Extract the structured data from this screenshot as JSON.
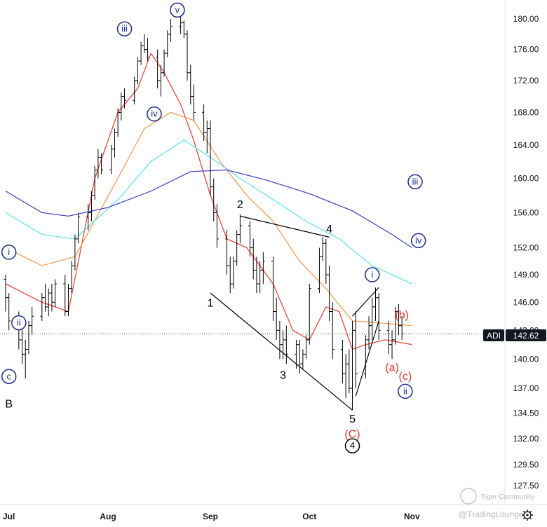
{
  "symbol": {
    "ticker": "ADI",
    "last_price": "142.62"
  },
  "watermark": {
    "tradingview": "@TradingLounge",
    "community": "Tiger Community"
  },
  "colors": {
    "candles": "#000000",
    "ma_red": "#e8483f",
    "ma_orange": "#f49b52",
    "ma_cyan": "#69e3ef",
    "ma_blue": "#4b4bc0",
    "wave_black": "#000000",
    "wave_navy": "#1a2a8c",
    "wave_red": "#e03a2f",
    "axis_text": "#131722"
  },
  "chart_data": {
    "type": "candlestick",
    "title": "",
    "xlabel": "",
    "ylabel": "",
    "ylim": [
      126.5,
      181.8
    ],
    "y_scale": "log",
    "y_ticks": [
      "180.00",
      "176.00",
      "172.00",
      "168.00",
      "164.00",
      "160.00",
      "156.00",
      "152.00",
      "149.00",
      "146.00",
      "143.00",
      "140.00",
      "137.00",
      "134.50",
      "132.00",
      "129.50",
      "127.50"
    ],
    "x_ticks": [
      "Jul",
      "Aug",
      "Sep",
      "Oct",
      "Nov"
    ],
    "x_range": [
      "2021-07-01",
      "2021-11-02"
    ],
    "price_line": 142.62,
    "moving_averages": [
      {
        "color_key": "ma_red",
        "points": [
          [
            "2021-07-01",
            148.0
          ],
          [
            "2021-07-12",
            146.0
          ],
          [
            "2021-07-20",
            145.0
          ],
          [
            "2021-07-28",
            160.0
          ],
          [
            "2021-08-04",
            168.0
          ],
          [
            "2021-08-10",
            171.0
          ],
          [
            "2021-08-14",
            175.5
          ],
          [
            "2021-08-18",
            173.0
          ],
          [
            "2021-08-23",
            169.0
          ],
          [
            "2021-08-27",
            164.5
          ],
          [
            "2021-09-01",
            158.0
          ],
          [
            "2021-09-06",
            153.0
          ],
          [
            "2021-09-12",
            152.0
          ],
          [
            "2021-09-20",
            148.0
          ],
          [
            "2021-09-26",
            143.0
          ],
          [
            "2021-10-01",
            142.0
          ],
          [
            "2021-10-06",
            145.5
          ],
          [
            "2021-10-10",
            145.0
          ],
          [
            "2021-10-14",
            141.0
          ],
          [
            "2021-10-18",
            141.5
          ],
          [
            "2021-10-24",
            142.0
          ],
          [
            "2021-11-01",
            141.5
          ]
        ]
      },
      {
        "color_key": "ma_orange",
        "points": [
          [
            "2021-07-01",
            152.0
          ],
          [
            "2021-07-12",
            150.0
          ],
          [
            "2021-07-22",
            151.0
          ],
          [
            "2021-08-04",
            160.0
          ],
          [
            "2021-08-12",
            166.0
          ],
          [
            "2021-08-20",
            168.0
          ],
          [
            "2021-08-27",
            167.0
          ],
          [
            "2021-09-04",
            162.0
          ],
          [
            "2021-09-12",
            158.0
          ],
          [
            "2021-09-20",
            155.0
          ],
          [
            "2021-09-28",
            150.5
          ],
          [
            "2021-10-06",
            147.5
          ],
          [
            "2021-10-14",
            144.0
          ],
          [
            "2021-10-22",
            143.8
          ],
          [
            "2021-11-01",
            143.5
          ]
        ]
      },
      {
        "color_key": "ma_cyan",
        "points": [
          [
            "2021-07-01",
            156.0
          ],
          [
            "2021-07-12",
            153.5
          ],
          [
            "2021-07-22",
            153.0
          ],
          [
            "2021-08-04",
            157.5
          ],
          [
            "2021-08-14",
            162.0
          ],
          [
            "2021-08-24",
            164.6
          ],
          [
            "2021-09-01",
            162.5
          ],
          [
            "2021-09-10",
            160.0
          ],
          [
            "2021-09-20",
            157.5
          ],
          [
            "2021-09-30",
            155.0
          ],
          [
            "2021-10-10",
            153.0
          ],
          [
            "2021-10-20",
            150.0
          ],
          [
            "2021-11-01",
            148.0
          ]
        ]
      },
      {
        "color_key": "ma_blue",
        "points": [
          [
            "2021-07-01",
            158.5
          ],
          [
            "2021-07-12",
            156.0
          ],
          [
            "2021-07-20",
            155.6
          ],
          [
            "2021-08-01",
            156.6
          ],
          [
            "2021-08-14",
            158.5
          ],
          [
            "2021-08-26",
            160.8
          ],
          [
            "2021-09-06",
            161.0
          ],
          [
            "2021-09-18",
            159.8
          ],
          [
            "2021-10-01",
            158.2
          ],
          [
            "2021-10-14",
            156.2
          ],
          [
            "2021-10-26",
            153.5
          ],
          [
            "2021-11-01",
            152.0
          ]
        ]
      }
    ],
    "wave_labels": [
      {
        "text": "i",
        "x": "2021-07-02",
        "y": 151.5,
        "style": "circled",
        "color_key": "wave_navy"
      },
      {
        "text": "ii",
        "x": "2021-07-05",
        "y": 143.8,
        "style": "circled",
        "color_key": "wave_navy"
      },
      {
        "text": "c",
        "x": "2021-07-02",
        "y": 138.2,
        "style": "circled",
        "color_key": "wave_navy"
      },
      {
        "text": "B",
        "x": "2021-07-02",
        "y": 135.5,
        "style": "plain",
        "color_key": "wave_black"
      },
      {
        "text": "iii",
        "x": "2021-08-06",
        "y": 178.7,
        "style": "circled",
        "color_key": "wave_navy"
      },
      {
        "text": "iv",
        "x": "2021-08-15",
        "y": 167.8,
        "style": "circled",
        "color_key": "wave_navy"
      },
      {
        "text": "v",
        "x": "2021-08-22",
        "y": 181.2,
        "style": "circled",
        "color_key": "wave_navy"
      },
      {
        "text": "1",
        "x": "2021-09-01",
        "y": 146.0,
        "style": "plain",
        "color_key": "wave_black"
      },
      {
        "text": "2",
        "x": "2021-09-10",
        "y": 157.0,
        "style": "plain",
        "color_key": "wave_black"
      },
      {
        "text": "3",
        "x": "2021-09-23",
        "y": 138.4,
        "style": "plain",
        "color_key": "wave_black"
      },
      {
        "text": "4",
        "x": "2021-10-07",
        "y": 154.2,
        "style": "plain",
        "color_key": "wave_black"
      },
      {
        "text": "5",
        "x": "2021-10-14",
        "y": 134.0,
        "style": "plain",
        "color_key": "wave_black"
      },
      {
        "text": "(C)",
        "x": "2021-10-14",
        "y": 132.5,
        "style": "plain",
        "color_key": "wave_red"
      },
      {
        "text": "4",
        "x": "2021-10-14",
        "y": 131.3,
        "style": "circled",
        "color_key": "wave_black"
      },
      {
        "text": "i",
        "x": "2021-10-20",
        "y": 149.0,
        "style": "circled",
        "color_key": "wave_navy"
      },
      {
        "text": "(b)",
        "x": "2021-10-29",
        "y": 144.7,
        "style": "plain",
        "color_key": "wave_red"
      },
      {
        "text": "(a)",
        "x": "2021-10-26",
        "y": 139.2,
        "style": "plain",
        "color_key": "wave_red"
      },
      {
        "text": "(c)",
        "x": "2021-10-30",
        "y": 138.3,
        "style": "plain",
        "color_key": "wave_red"
      },
      {
        "text": "ii",
        "x": "2021-10-30",
        "y": 136.7,
        "style": "circled",
        "color_key": "wave_navy"
      },
      {
        "text": "iii",
        "x": "2021-11-02",
        "y": 159.6,
        "style": "circled",
        "color_key": "wave_navy"
      },
      {
        "text": "iv",
        "x": "2021-11-03",
        "y": 152.8,
        "style": "circled",
        "color_key": "wave_navy"
      }
    ],
    "trendlines": [
      {
        "from": [
          "2021-09-01",
          147.0
        ],
        "to": [
          "2021-10-14",
          134.8
        ]
      },
      {
        "from": [
          "2021-09-10",
          155.6
        ],
        "to": [
          "2021-10-07",
          153.2
        ]
      },
      {
        "from": [
          "2021-10-14",
          144.5
        ],
        "to": [
          "2021-10-22",
          147.6
        ]
      },
      {
        "from": [
          "2021-10-15",
          136.2
        ],
        "to": [
          "2021-10-22",
          144.0
        ]
      }
    ],
    "candles": [
      [
        "2021-07-01",
        148.5,
        149.0,
        145.0,
        146.5
      ],
      [
        "2021-07-02",
        146.5,
        147.0,
        143.0,
        144.0
      ],
      [
        "2021-07-05",
        144.0,
        145.0,
        141.0,
        142.0
      ],
      [
        "2021-07-06",
        142.0,
        143.5,
        139.5,
        140.5
      ],
      [
        "2021-07-07",
        140.5,
        142.0,
        138.0,
        141.0
      ],
      [
        "2021-07-08",
        141.0,
        144.0,
        140.5,
        143.5
      ],
      [
        "2021-07-09",
        143.5,
        145.5,
        142.5,
        144.5
      ],
      [
        "2021-07-12",
        144.5,
        147.0,
        144.0,
        146.5
      ],
      [
        "2021-07-13",
        146.5,
        148.0,
        145.0,
        145.5
      ],
      [
        "2021-07-14",
        145.5,
        147.5,
        144.5,
        147.0
      ],
      [
        "2021-07-15",
        147.0,
        148.0,
        145.0,
        146.0
      ],
      [
        "2021-07-16",
        146.0,
        148.5,
        145.5,
        148.0
      ],
      [
        "2021-07-19",
        148.0,
        149.0,
        144.5,
        145.0
      ],
      [
        "2021-07-20",
        145.0,
        148.0,
        144.5,
        147.5
      ],
      [
        "2021-07-21",
        147.5,
        150.5,
        147.0,
        150.0
      ],
      [
        "2021-07-22",
        150.0,
        153.5,
        149.5,
        153.0
      ],
      [
        "2021-07-23",
        153.0,
        156.0,
        152.5,
        155.5
      ],
      [
        "2021-07-26",
        155.5,
        157.0,
        154.0,
        156.0
      ],
      [
        "2021-07-27",
        156.0,
        158.5,
        155.0,
        158.0
      ],
      [
        "2021-07-28",
        158.0,
        161.5,
        157.5,
        161.0
      ],
      [
        "2021-07-29",
        161.0,
        163.5,
        160.0,
        162.5
      ],
      [
        "2021-07-30",
        162.5,
        163.0,
        160.5,
        161.0
      ],
      [
        "2021-08-02",
        161.0,
        164.0,
        160.5,
        163.5
      ],
      [
        "2021-08-03",
        163.5,
        166.0,
        162.5,
        165.5
      ],
      [
        "2021-08-04",
        165.5,
        168.5,
        165.0,
        168.0
      ],
      [
        "2021-08-05",
        168.0,
        170.5,
        167.0,
        170.0
      ],
      [
        "2021-08-06",
        170.0,
        171.0,
        168.5,
        169.5
      ],
      [
        "2021-08-09",
        169.5,
        172.5,
        169.0,
        172.0
      ],
      [
        "2021-08-10",
        172.0,
        175.0,
        171.5,
        174.5
      ],
      [
        "2021-08-11",
        174.5,
        177.0,
        174.0,
        176.5
      ],
      [
        "2021-08-12",
        176.5,
        178.0,
        175.5,
        176.0
      ],
      [
        "2021-08-13",
        176.0,
        177.5,
        174.5,
        175.0
      ],
      [
        "2021-08-16",
        175.0,
        176.0,
        171.0,
        172.0
      ],
      [
        "2021-08-17",
        172.0,
        174.0,
        170.0,
        173.0
      ],
      [
        "2021-08-18",
        173.0,
        176.0,
        172.5,
        175.5
      ],
      [
        "2021-08-19",
        175.5,
        178.5,
        175.0,
        178.0
      ],
      [
        "2021-08-20",
        178.0,
        180.0,
        177.0,
        179.0
      ],
      [
        "2021-08-23",
        179.0,
        180.5,
        178.0,
        179.5
      ],
      [
        "2021-08-24",
        179.5,
        179.8,
        177.5,
        178.0
      ],
      [
        "2021-08-25",
        178.0,
        178.5,
        172.0,
        173.0
      ],
      [
        "2021-08-26",
        173.0,
        174.0,
        169.0,
        170.0
      ],
      [
        "2021-08-27",
        170.0,
        171.5,
        167.0,
        168.0
      ],
      [
        "2021-08-30",
        168.0,
        169.0,
        164.5,
        165.5
      ],
      [
        "2021-08-31",
        165.5,
        167.0,
        163.0,
        166.0
      ],
      [
        "2021-09-01",
        166.0,
        167.0,
        158.0,
        159.0
      ],
      [
        "2021-09-02",
        159.0,
        160.0,
        155.0,
        156.0
      ],
      [
        "2021-09-03",
        156.0,
        157.0,
        152.0,
        153.0
      ],
      [
        "2021-09-06",
        153.0,
        154.0,
        149.0,
        150.0
      ],
      [
        "2021-09-07",
        150.0,
        151.0,
        147.0,
        148.0
      ],
      [
        "2021-09-08",
        148.0,
        151.0,
        147.5,
        150.5
      ],
      [
        "2021-09-09",
        150.5,
        154.0,
        150.0,
        153.5
      ],
      [
        "2021-09-10",
        153.5,
        155.8,
        152.5,
        154.5
      ],
      [
        "2021-09-13",
        154.5,
        155.0,
        151.0,
        152.0
      ],
      [
        "2021-09-14",
        152.0,
        153.0,
        148.5,
        149.5
      ],
      [
        "2021-09-15",
        149.5,
        151.0,
        147.0,
        148.0
      ],
      [
        "2021-09-16",
        148.0,
        150.5,
        147.0,
        149.5
      ],
      [
        "2021-09-17",
        149.5,
        151.5,
        148.0,
        150.5
      ],
      [
        "2021-09-20",
        150.5,
        151.0,
        144.0,
        145.0
      ],
      [
        "2021-09-21",
        145.0,
        146.5,
        142.0,
        143.0
      ],
      [
        "2021-09-22",
        143.0,
        144.0,
        140.0,
        141.5
      ],
      [
        "2021-09-23",
        141.5,
        143.0,
        140.0,
        142.0
      ],
      [
        "2021-09-24",
        142.0,
        143.5,
        139.5,
        140.5
      ],
      [
        "2021-09-27",
        140.5,
        142.0,
        139.0,
        141.5
      ],
      [
        "2021-09-28",
        141.5,
        142.0,
        138.5,
        139.5
      ],
      [
        "2021-09-29",
        139.5,
        141.0,
        139.0,
        140.5
      ],
      [
        "2021-09-30",
        140.5,
        142.5,
        140.0,
        142.0
      ],
      [
        "2021-10-01",
        142.0,
        148.0,
        141.5,
        147.5
      ],
      [
        "2021-10-04",
        147.5,
        152.0,
        147.0,
        151.0
      ],
      [
        "2021-10-05",
        151.0,
        153.2,
        150.5,
        152.5
      ],
      [
        "2021-10-06",
        152.5,
        153.0,
        148.0,
        149.0
      ],
      [
        "2021-10-07",
        149.0,
        150.0,
        144.0,
        145.0
      ],
      [
        "2021-10-08",
        145.0,
        146.0,
        140.0,
        141.0
      ],
      [
        "2021-10-11",
        141.0,
        142.0,
        137.5,
        138.5
      ],
      [
        "2021-10-12",
        138.5,
        140.5,
        136.0,
        139.5
      ],
      [
        "2021-10-13",
        139.5,
        141.0,
        136.5,
        137.0
      ],
      [
        "2021-10-14",
        137.0,
        144.0,
        134.8,
        143.0
      ],
      [
        "2021-10-15",
        143.0,
        145.0,
        137.0,
        138.5
      ],
      [
        "2021-10-18",
        138.5,
        142.5,
        138.0,
        142.0
      ],
      [
        "2021-10-19",
        142.0,
        144.5,
        141.0,
        143.5
      ],
      [
        "2021-10-20",
        143.5,
        146.5,
        142.0,
        145.5
      ],
      [
        "2021-10-21",
        145.5,
        147.6,
        144.0,
        146.5
      ],
      [
        "2021-10-22",
        146.5,
        147.0,
        142.0,
        143.0
      ],
      [
        "2021-10-25",
        143.0,
        144.0,
        140.5,
        141.5
      ],
      [
        "2021-10-26",
        141.5,
        143.0,
        140.0,
        142.0
      ],
      [
        "2021-10-27",
        142.0,
        145.5,
        141.5,
        145.0
      ],
      [
        "2021-10-28",
        145.0,
        145.8,
        142.5,
        143.5
      ],
      [
        "2021-10-29",
        143.5,
        144.5,
        142.0,
        142.62
      ]
    ]
  }
}
